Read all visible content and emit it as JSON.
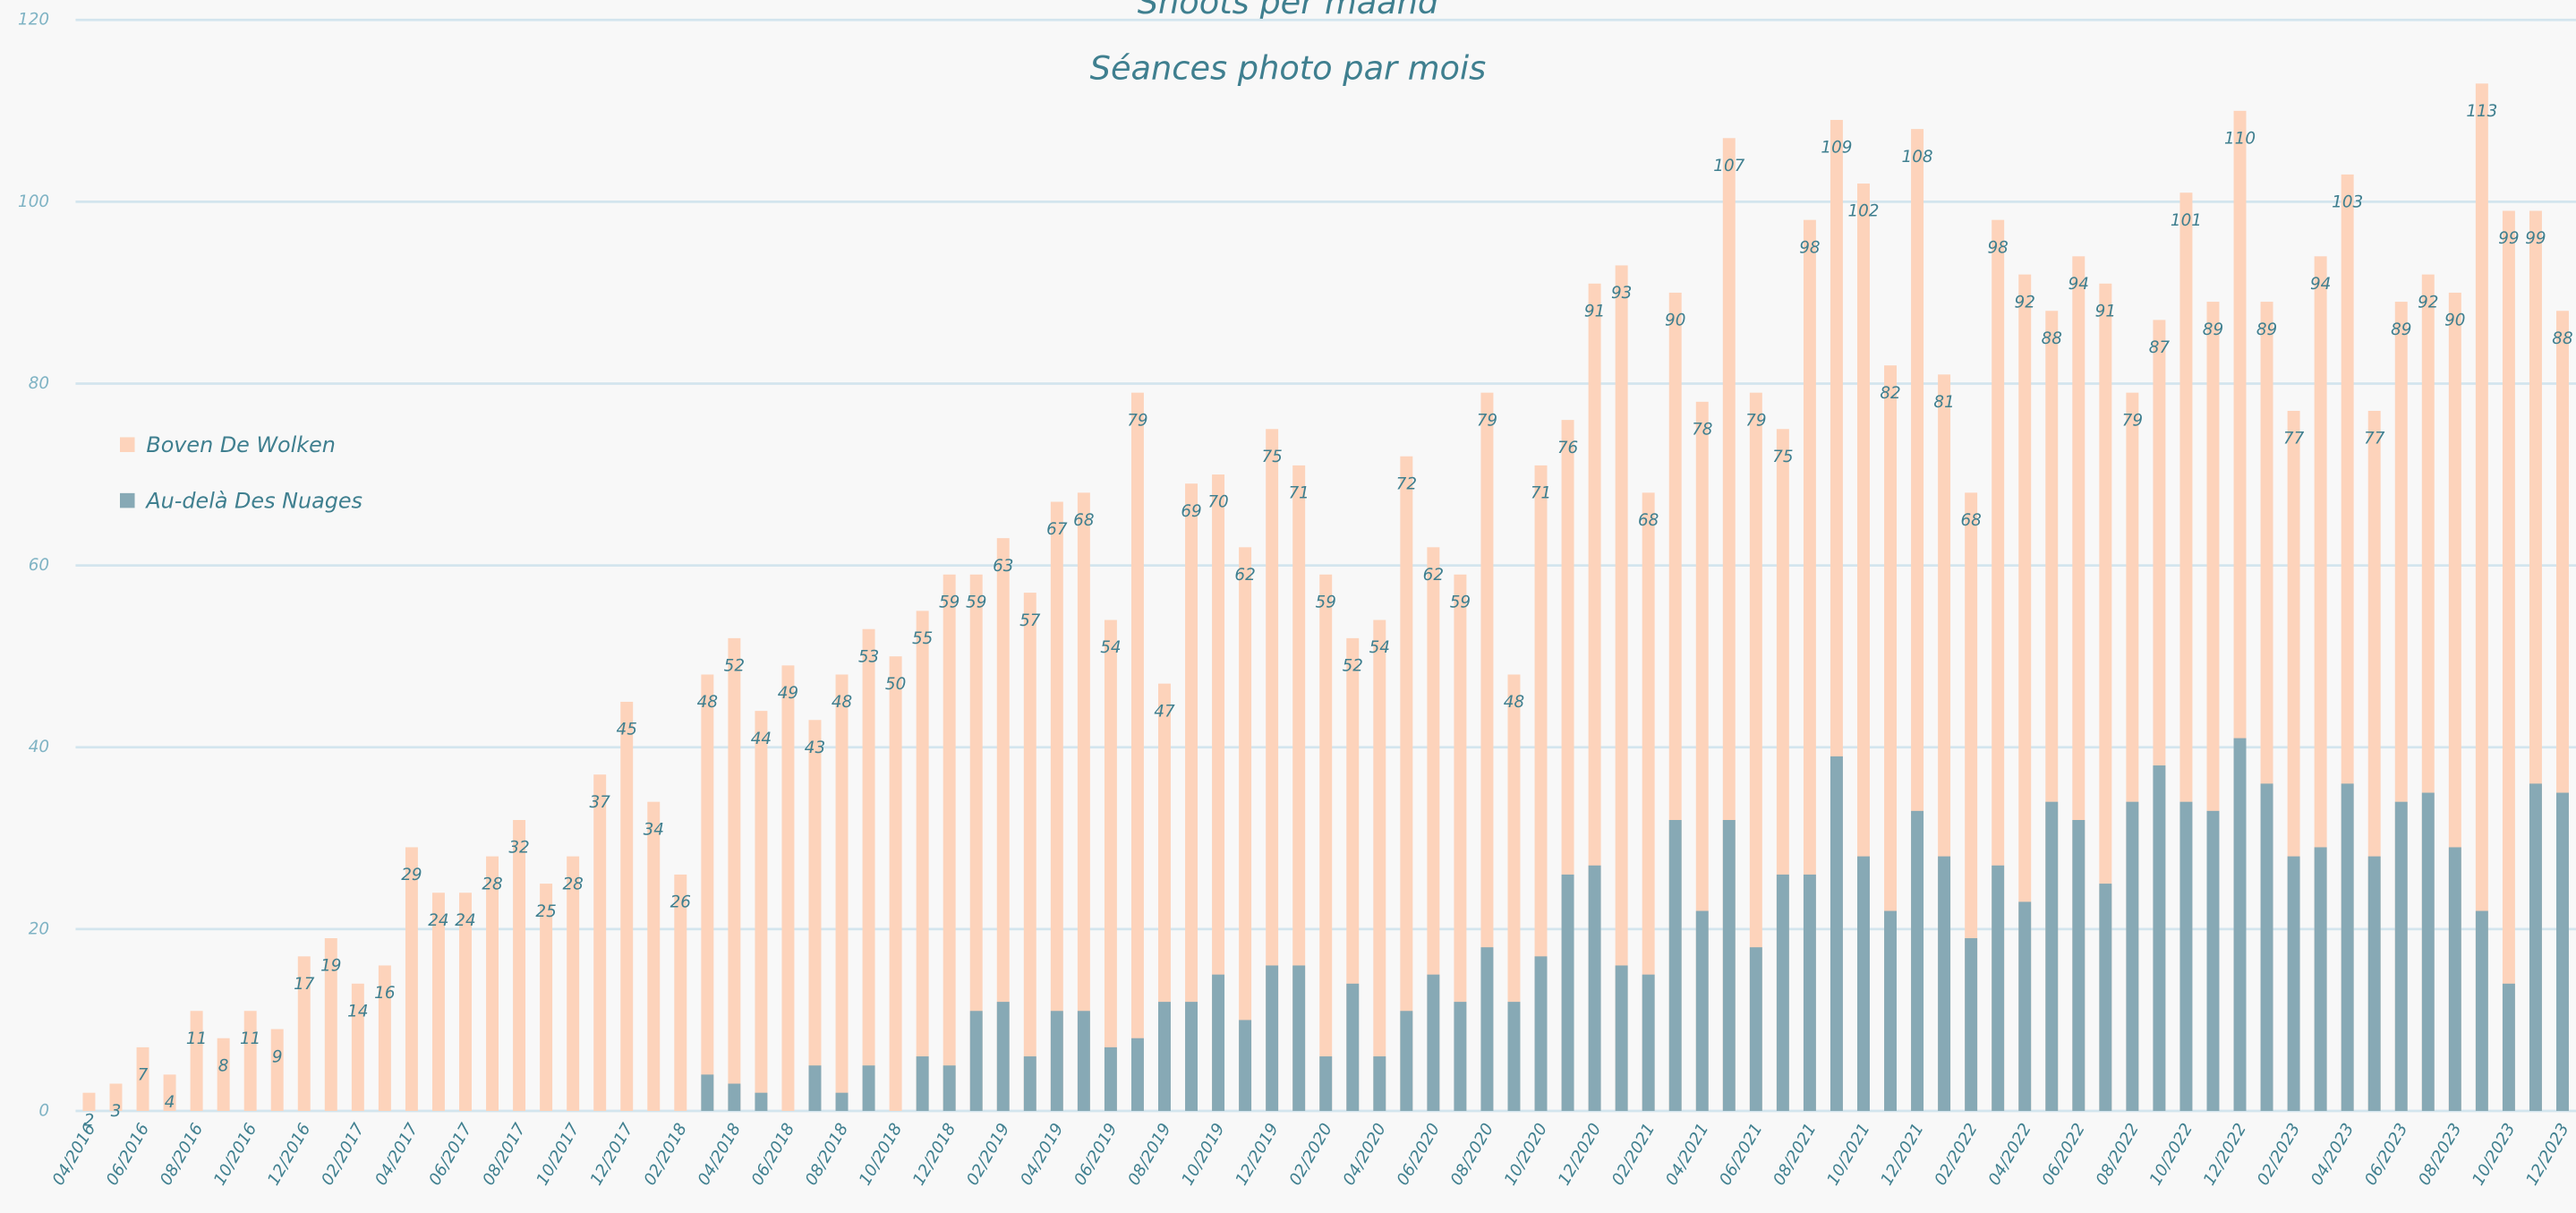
{
  "chart_data": {
    "type": "bar",
    "title": "Shoots per maand",
    "subtitle": "Séances photo par mois",
    "categories": [
      "04/2016",
      null,
      "06/2016",
      null,
      "08/2016",
      null,
      "10/2016",
      null,
      "12/2016",
      null,
      "02/2017",
      null,
      "04/2017",
      null,
      "06/2017",
      null,
      "08/2017",
      null,
      "10/2017",
      null,
      "12/2017",
      null,
      "02/2018",
      null,
      "04/2018",
      null,
      "06/2018",
      null,
      "08/2018",
      null,
      "10/2018",
      null,
      "12/2018",
      null,
      "02/2019",
      null,
      "04/2019",
      null,
      "06/2019",
      null,
      "08/2019",
      null,
      "10/2019",
      null,
      "12/2019",
      null,
      "02/2020",
      null,
      "04/2020",
      null,
      "06/2020",
      null,
      "08/2020",
      null,
      "10/2020",
      null,
      "12/2020",
      null,
      "02/2021",
      null,
      "04/2021",
      null,
      "06/2021",
      null,
      "08/2021",
      null,
      "10/2021",
      null,
      "12/2021",
      null,
      "02/2022",
      null,
      "04/2022",
      null,
      "06/2022",
      null,
      "08/2022",
      null,
      "10/2022",
      null,
      "12/2022",
      null,
      "02/2023",
      null,
      "04/2023",
      null,
      "06/2023",
      null,
      "08/2023",
      null,
      "10/2023",
      null,
      "12/2023"
    ],
    "series": [
      {
        "name": "Boven De Wolken",
        "color": "#fdd3bb",
        "values": [
          2,
          3,
          7,
          4,
          11,
          8,
          11,
          9,
          17,
          19,
          14,
          16,
          29,
          24,
          24,
          28,
          32,
          25,
          28,
          37,
          45,
          34,
          26,
          48,
          52,
          44,
          49,
          43,
          48,
          53,
          50,
          55,
          59,
          59,
          63,
          57,
          67,
          68,
          54,
          79,
          47,
          69,
          70,
          62,
          75,
          71,
          59,
          52,
          54,
          72,
          62,
          59,
          79,
          48,
          71,
          76,
          91,
          93,
          68,
          90,
          78,
          107,
          79,
          75,
          98,
          109,
          102,
          82,
          108,
          81,
          68,
          98,
          92,
          88,
          94,
          91,
          79,
          87,
          101,
          89,
          110,
          89,
          77,
          94,
          103,
          77,
          89,
          92,
          90,
          113,
          99,
          99,
          88
        ]
      },
      {
        "name": "Au-delà Des Nuages",
        "color": "#87a9b5",
        "values": [
          0,
          0,
          0,
          0,
          0,
          0,
          0,
          0,
          0,
          0,
          0,
          0,
          0,
          0,
          0,
          0,
          0,
          0,
          0,
          0,
          0,
          0,
          0,
          4,
          3,
          2,
          0,
          5,
          2,
          5,
          0,
          6,
          5,
          11,
          12,
          6,
          11,
          11,
          7,
          8,
          12,
          12,
          15,
          10,
          16,
          16,
          6,
          14,
          6,
          11,
          15,
          12,
          18,
          12,
          17,
          26,
          27,
          16,
          15,
          32,
          22,
          32,
          18,
          26,
          26,
          39,
          28,
          22,
          33,
          28,
          19,
          27,
          23,
          34,
          32,
          25,
          34,
          38,
          34,
          33,
          41,
          36,
          28,
          29,
          36,
          28,
          34,
          35,
          29,
          22,
          14,
          36,
          35
        ]
      }
    ],
    "ylim": [
      0,
      120
    ],
    "yticks": [
      0,
      20,
      40,
      60,
      80,
      100,
      120
    ],
    "grid": true
  }
}
